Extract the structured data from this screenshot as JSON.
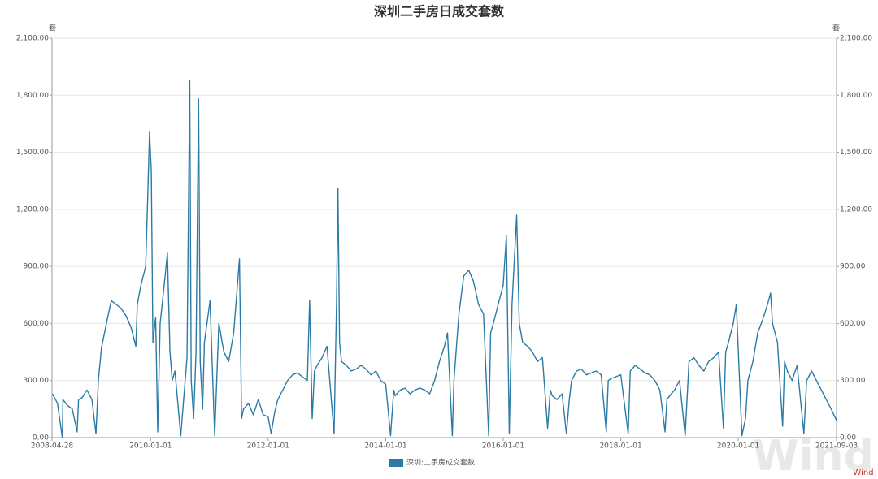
{
  "chart_data": {
    "type": "line",
    "title": "深圳二手房日成交套数",
    "y_unit": "套",
    "y2_unit": "套",
    "source": "Wind",
    "watermark": "Wind",
    "xlim": [
      "2008-04-28",
      "2021-09-03"
    ],
    "xticks": [
      "2008-04-28",
      "2010-01-01",
      "2012-01-01",
      "2014-01-01",
      "2016-01-01",
      "2018-01-01",
      "2020-01-01",
      "2021-09-03"
    ],
    "ylim": [
      0,
      2100
    ],
    "yticks": [
      {
        "value": 0,
        "label": "0.00"
      },
      {
        "value": 300,
        "label": "300.00"
      },
      {
        "value": 600,
        "label": "600.00"
      },
      {
        "value": 900,
        "label": "900.00"
      },
      {
        "value": 1200,
        "label": "1,200.00"
      },
      {
        "value": 1500,
        "label": "1,500.00"
      },
      {
        "value": 1800,
        "label": "1,800.00"
      },
      {
        "value": 2100,
        "label": "2,100.00"
      }
    ],
    "y2lim": [
      0,
      2100
    ],
    "y2ticks": [
      {
        "value": 0,
        "label": "0.00"
      },
      {
        "value": 300,
        "label": "300.00"
      },
      {
        "value": 600,
        "label": "600.00"
      },
      {
        "value": 900,
        "label": "900.00"
      },
      {
        "value": 1200,
        "label": "1,200.00"
      },
      {
        "value": 1500,
        "label": "1,500.00"
      },
      {
        "value": 1800,
        "label": "1,800.00"
      },
      {
        "value": 2100,
        "label": "2,100.00"
      }
    ],
    "grid": true,
    "legend": "bottom",
    "x": [
      "2008-05-01",
      "2008-06-01",
      "2008-07-01",
      "2008-07-05",
      "2008-08-01",
      "2008-09-01",
      "2008-10-01",
      "2008-10-10",
      "2008-11-01",
      "2008-12-01",
      "2009-01-01",
      "2009-01-26",
      "2009-02-10",
      "2009-03-01",
      "2009-04-01",
      "2009-05-01",
      "2009-06-01",
      "2009-07-01",
      "2009-08-01",
      "2009-09-01",
      "2009-10-01",
      "2009-10-10",
      "2009-11-01",
      "2009-12-01",
      "2009-12-15",
      "2009-12-25",
      "2010-01-05",
      "2010-01-15",
      "2010-02-01",
      "2010-02-14",
      "2010-03-01",
      "2010-04-01",
      "2010-04-15",
      "2010-05-01",
      "2010-05-15",
      "2010-06-01",
      "2010-07-07",
      "2010-08-15",
      "2010-09-01",
      "2010-09-10",
      "2010-09-25",
      "2010-10-10",
      "2010-10-26",
      "2010-11-05",
      "2010-11-20",
      "2010-12-01",
      "2011-01-05",
      "2011-02-03",
      "2011-02-20",
      "2011-03-01",
      "2011-04-01",
      "2011-05-01",
      "2011-06-01",
      "2011-07-07",
      "2011-07-20",
      "2011-08-01",
      "2011-09-01",
      "2011-10-01",
      "2011-11-01",
      "2011-12-01",
      "2012-01-01",
      "2012-01-20",
      "2012-02-10",
      "2012-03-01",
      "2012-04-01",
      "2012-05-01",
      "2012-06-01",
      "2012-07-01",
      "2012-08-01",
      "2012-09-01",
      "2012-09-15",
      "2012-10-01",
      "2012-10-15",
      "2012-11-01",
      "2012-12-01",
      "2013-01-01",
      "2013-02-14",
      "2013-03-01",
      "2013-03-10",
      "2013-03-20",
      "2013-04-01",
      "2013-05-01",
      "2013-06-01",
      "2013-07-01",
      "2013-08-01",
      "2013-09-01",
      "2013-10-01",
      "2013-11-01",
      "2013-12-01",
      "2014-01-01",
      "2014-01-31",
      "2014-02-20",
      "2014-03-01",
      "2014-04-01",
      "2014-05-01",
      "2014-06-01",
      "2014-07-01",
      "2014-08-01",
      "2014-09-01",
      "2014-10-01",
      "2014-11-01",
      "2014-12-01",
      "2015-01-01",
      "2015-01-20",
      "2015-02-19",
      "2015-03-01",
      "2015-04-01",
      "2015-05-01",
      "2015-06-01",
      "2015-07-01",
      "2015-08-01",
      "2015-09-01",
      "2015-10-03",
      "2015-10-15",
      "2015-11-01",
      "2015-12-01",
      "2016-01-01",
      "2016-01-21",
      "2016-02-08",
      "2016-02-25",
      "2016-03-25",
      "2016-04-10",
      "2016-05-01",
      "2016-06-01",
      "2016-07-01",
      "2016-08-01",
      "2016-09-01",
      "2016-10-03",
      "2016-10-20",
      "2016-11-01",
      "2016-12-01",
      "2017-01-01",
      "2017-01-28",
      "2017-02-15",
      "2017-03-01",
      "2017-04-01",
      "2017-05-01",
      "2017-06-01",
      "2017-07-01",
      "2017-08-01",
      "2017-09-01",
      "2017-10-03",
      "2017-10-15",
      "2017-11-01",
      "2017-12-01",
      "2018-01-01",
      "2018-02-16",
      "2018-03-01",
      "2018-04-01",
      "2018-05-01",
      "2018-06-01",
      "2018-07-01",
      "2018-08-01",
      "2018-09-01",
      "2018-10-03",
      "2018-10-15",
      "2018-11-01",
      "2018-12-01",
      "2019-01-01",
      "2019-02-05",
      "2019-03-01",
      "2019-04-01",
      "2019-05-01",
      "2019-06-01",
      "2019-07-01",
      "2019-08-01",
      "2019-09-01",
      "2019-10-01",
      "2019-10-15",
      "2019-11-01",
      "2019-12-01",
      "2019-12-20",
      "2020-01-24",
      "2020-02-15",
      "2020-03-01",
      "2020-04-01",
      "2020-05-01",
      "2020-06-01",
      "2020-07-01",
      "2020-07-20",
      "2020-08-01",
      "2020-09-01",
      "2020-10-03",
      "2020-10-15",
      "2020-11-01",
      "2020-12-01",
      "2021-01-01",
      "2021-02-12",
      "2021-03-01",
      "2021-04-01",
      "2021-05-01",
      "2021-06-01",
      "2021-07-01",
      "2021-08-01",
      "2021-09-03"
    ],
    "series": [
      {
        "name": "深圳:二手房成交套数",
        "color": "#2b7ba5",
        "values": [
          230,
          180,
          0,
          200,
          170,
          150,
          30,
          200,
          210,
          250,
          200,
          20,
          300,
          470,
          600,
          720,
          700,
          680,
          640,
          580,
          480,
          700,
          800,
          900,
          1300,
          1610,
          1400,
          500,
          630,
          30,
          600,
          850,
          970,
          450,
          300,
          350,
          10,
          420,
          1880,
          300,
          100,
          450,
          1780,
          400,
          150,
          500,
          720,
          10,
          400,
          600,
          450,
          400,
          550,
          940,
          100,
          150,
          180,
          120,
          200,
          120,
          110,
          20,
          130,
          200,
          250,
          300,
          330,
          340,
          320,
          300,
          720,
          100,
          350,
          380,
          420,
          480,
          20,
          700,
          1310,
          500,
          400,
          380,
          350,
          360,
          380,
          360,
          330,
          350,
          300,
          280,
          10,
          250,
          220,
          250,
          260,
          230,
          250,
          260,
          250,
          230,
          300,
          400,
          480,
          550,
          10,
          300,
          650,
          850,
          880,
          820,
          700,
          650,
          10,
          550,
          600,
          700,
          800,
          1060,
          20,
          700,
          1170,
          600,
          500,
          480,
          450,
          400,
          420,
          50,
          250,
          220,
          200,
          230,
          20,
          200,
          300,
          350,
          360,
          330,
          340,
          350,
          330,
          30,
          300,
          310,
          320,
          330,
          20,
          350,
          380,
          360,
          340,
          330,
          300,
          250,
          30,
          200,
          220,
          250,
          300,
          10,
          400,
          420,
          380,
          350,
          400,
          420,
          450,
          50,
          450,
          500,
          600,
          700,
          10,
          100,
          300,
          400,
          550,
          620,
          700,
          760,
          600,
          500,
          60,
          400,
          350,
          300,
          380,
          20,
          300,
          350,
          300,
          250,
          200,
          150,
          90
        ]
      }
    ]
  }
}
